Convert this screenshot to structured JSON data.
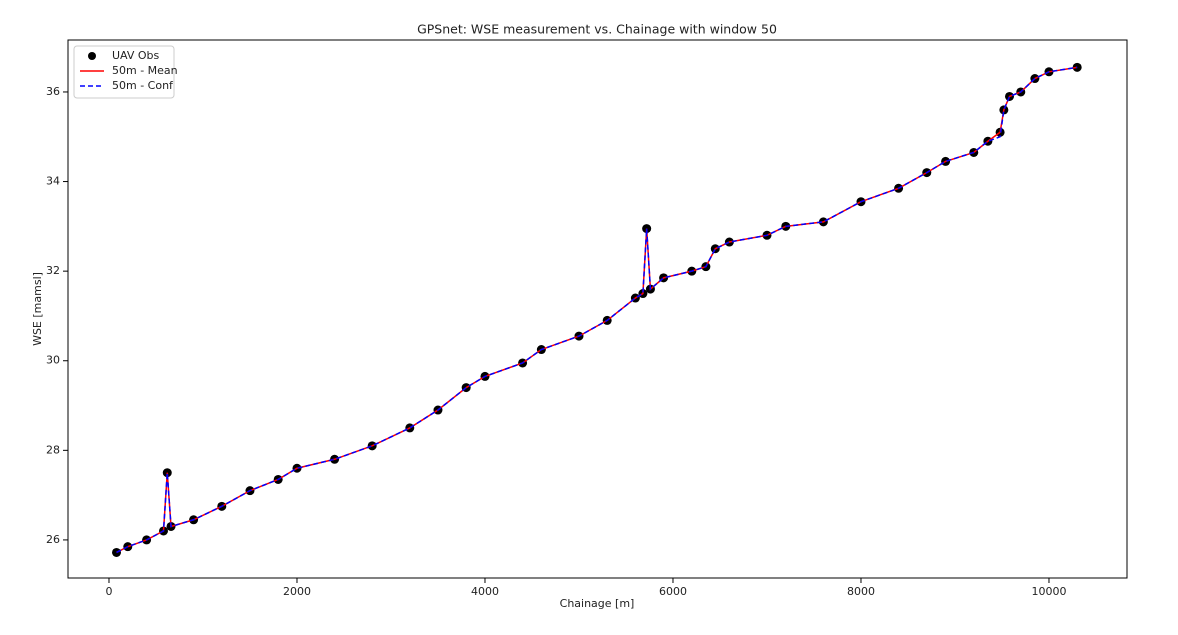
{
  "chart_data": {
    "type": "line",
    "title": "GPSnet: WSE measurement vs. Chainage with window 50",
    "xlabel": "Chainage [m]",
    "ylabel": "WSE [mamsl]",
    "x": [
      80,
      200,
      400,
      580,
      620,
      660,
      900,
      1200,
      1500,
      1800,
      2000,
      2400,
      2800,
      3200,
      3500,
      3800,
      4000,
      4400,
      4600,
      5000,
      5300,
      5600,
      5680,
      5720,
      5760,
      5900,
      6200,
      6350,
      6450,
      6600,
      7000,
      7200,
      7600,
      8000,
      8400,
      8700,
      8900,
      9200,
      9350,
      9480,
      9520,
      9580,
      9700,
      9850,
      10000,
      10300
    ],
    "series": [
      {
        "name": "UAV Obs",
        "color": "#000000",
        "style": "scatter",
        "values": [
          25.72,
          25.85,
          26.0,
          26.2,
          27.5,
          26.3,
          26.45,
          26.75,
          27.1,
          27.35,
          27.6,
          27.8,
          28.1,
          28.5,
          28.9,
          29.4,
          29.65,
          29.95,
          30.25,
          30.55,
          30.9,
          31.4,
          31.5,
          32.95,
          31.6,
          31.85,
          32.0,
          32.1,
          32.5,
          32.65,
          32.8,
          33.0,
          33.1,
          33.55,
          33.85,
          34.2,
          34.45,
          34.65,
          34.9,
          35.1,
          35.6,
          35.9,
          36.0,
          36.3,
          36.45,
          36.55
        ]
      },
      {
        "name": "50m - Mean",
        "color": "#ff0000",
        "style": "solid",
        "values": [
          25.72,
          25.85,
          26.0,
          26.2,
          27.5,
          26.3,
          26.45,
          26.75,
          27.1,
          27.35,
          27.6,
          27.8,
          28.1,
          28.5,
          28.9,
          29.4,
          29.65,
          29.95,
          30.25,
          30.55,
          30.9,
          31.4,
          31.5,
          32.95,
          31.6,
          31.85,
          32.0,
          32.1,
          32.5,
          32.65,
          32.8,
          33.0,
          33.1,
          33.55,
          33.85,
          34.2,
          34.45,
          34.65,
          34.9,
          35.1,
          35.6,
          35.9,
          36.0,
          36.3,
          36.45,
          36.55
        ]
      },
      {
        "name": "50m - Conf",
        "color": "#0000ff",
        "style": "dashed",
        "values": [
          25.72,
          25.85,
          26.0,
          26.2,
          27.5,
          26.3,
          26.45,
          26.75,
          27.1,
          27.35,
          27.6,
          27.8,
          28.1,
          28.5,
          28.9,
          29.4,
          29.65,
          29.95,
          30.25,
          30.55,
          30.9,
          31.4,
          31.5,
          32.95,
          31.6,
          31.85,
          32.0,
          32.1,
          32.5,
          32.65,
          32.8,
          33.0,
          33.1,
          33.55,
          33.85,
          34.2,
          34.45,
          34.65,
          34.9,
          35.0,
          35.6,
          35.9,
          36.0,
          36.3,
          36.45,
          36.55
        ]
      }
    ],
    "xlim": [
      -436,
      10830
    ],
    "ylim": [
      25.15,
      37.16
    ],
    "xticks": [
      0,
      2000,
      4000,
      6000,
      8000,
      10000
    ],
    "yticks": [
      26,
      28,
      30,
      32,
      34,
      36
    ],
    "grid": false,
    "legend": "upper-left"
  }
}
